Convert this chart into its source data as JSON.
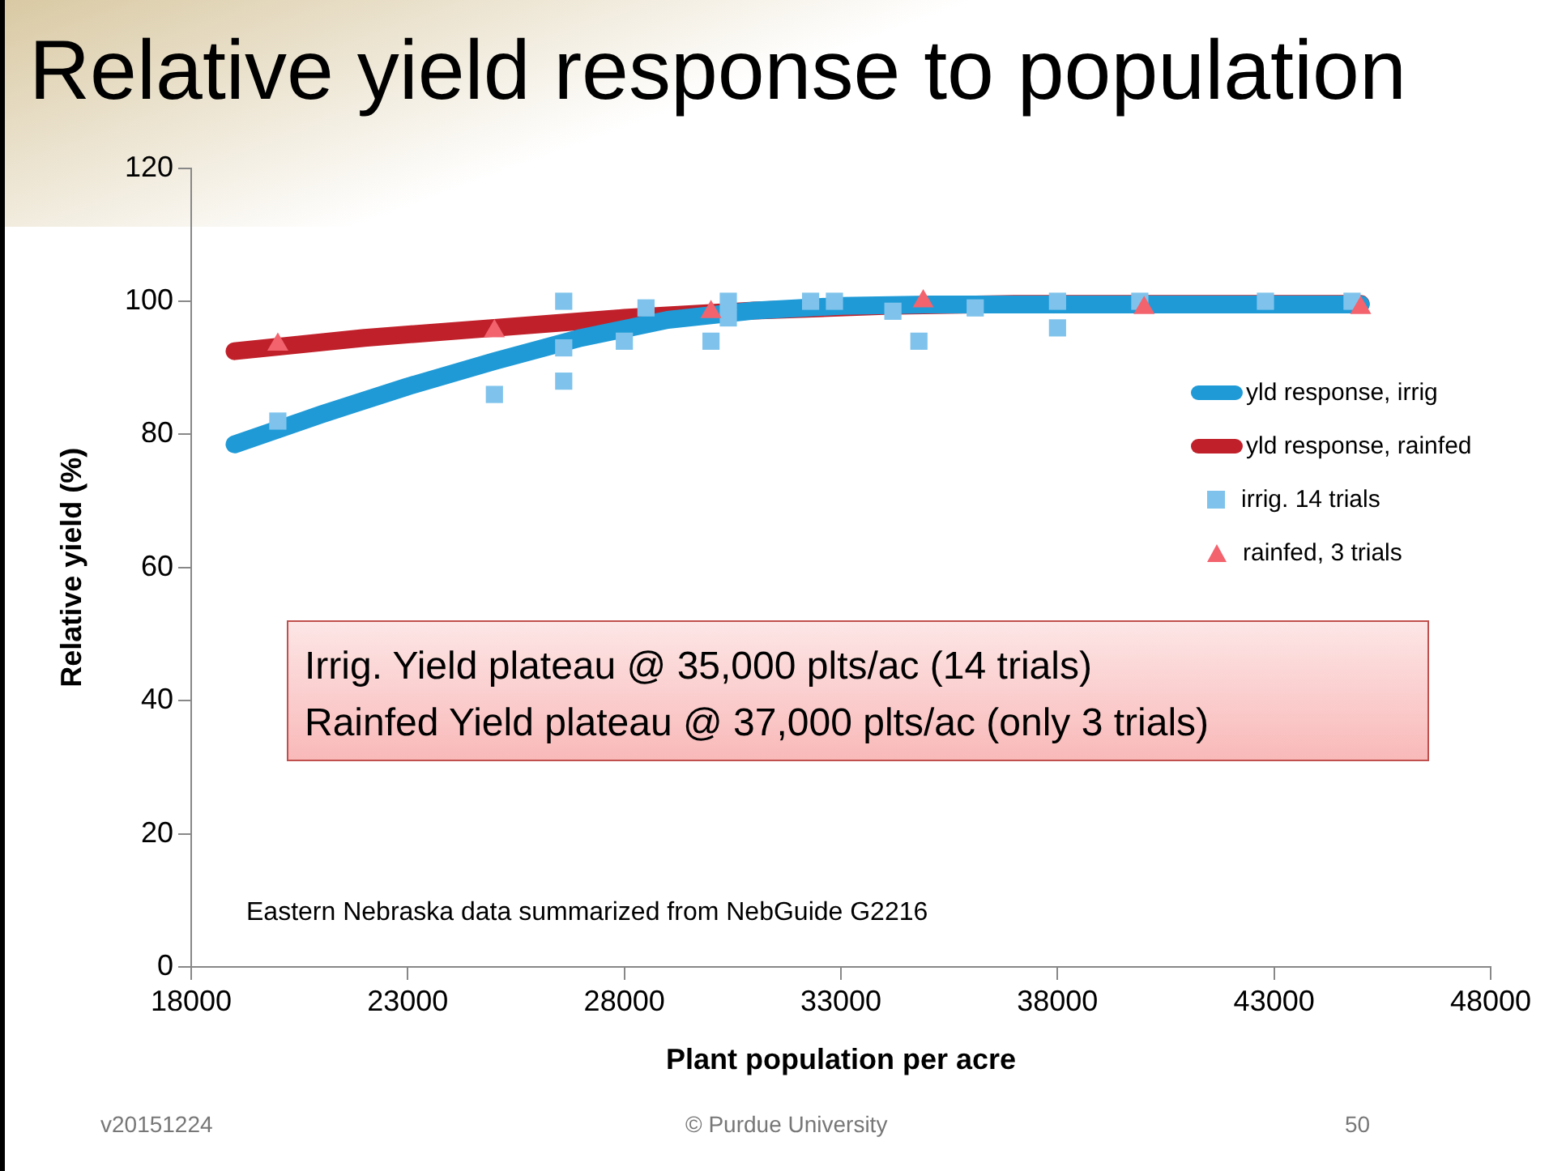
{
  "chart_data": {
    "type": "line",
    "title": "Relative yield response to population",
    "xlabel": "Plant population per acre",
    "ylabel": "Relative yield (%)",
    "xlim": [
      18000,
      48000
    ],
    "xticks": [
      18000,
      23000,
      28000,
      33000,
      38000,
      43000,
      48000
    ],
    "ylim": [
      0,
      120
    ],
    "yticks": [
      0,
      20,
      40,
      60,
      80,
      100,
      120
    ],
    "grid": false,
    "legend": "right",
    "series": [
      {
        "name": "yld response, irrig",
        "type": "line",
        "marker": "none",
        "color": "#1f9ad6",
        "x": [
          19000,
          21000,
          23000,
          25000,
          27000,
          29000,
          31000,
          33000,
          35000,
          40000,
          45000
        ],
        "values": [
          78.5,
          83,
          87.2,
          91,
          94.5,
          97.2,
          98.6,
          99.3,
          99.5,
          99.5,
          99.5
        ]
      },
      {
        "name": "yld response, rainfed",
        "type": "line",
        "marker": "none",
        "color": "#c0202a",
        "x": [
          19000,
          22000,
          25000,
          28000,
          31000,
          34000,
          37000,
          45000
        ],
        "values": [
          92.5,
          94.5,
          96,
          97.5,
          98.6,
          99.3,
          99.6,
          99.6
        ]
      },
      {
        "name": "irrig. 14 trials",
        "type": "scatter",
        "marker": "square",
        "color": "#7fc3ec",
        "x": [
          20000,
          25000,
          26600,
          26600,
          26600,
          28000,
          28500,
          30000,
          30400,
          30400,
          32300,
          32850,
          34200,
          34800,
          36100,
          38000,
          38000,
          39900,
          42800,
          44800
        ],
        "values": [
          82,
          86,
          100,
          93,
          88,
          94,
          99,
          94,
          100,
          97.5,
          100,
          100,
          98.5,
          94,
          99,
          100,
          96,
          100,
          100,
          100
        ]
      },
      {
        "name": "rainfed, 3 trials",
        "type": "scatter",
        "marker": "triangle",
        "color": "#f2636e",
        "x": [
          20000,
          25000,
          30000,
          34900,
          40000,
          45000
        ],
        "values": [
          93.5,
          95.5,
          98.4,
          100,
          99,
          99
        ]
      }
    ],
    "annotations": [
      "Irrig. Yield plateau @ 35,000 plts/ac (14 trials)",
      "Rainfed Yield plateau @ 37,000 plts/ac (only 3 trials)",
      "Eastern Nebraska data summarized from NebGuide G2216",
      "v20151224",
      "© Purdue University",
      "50"
    ]
  }
}
